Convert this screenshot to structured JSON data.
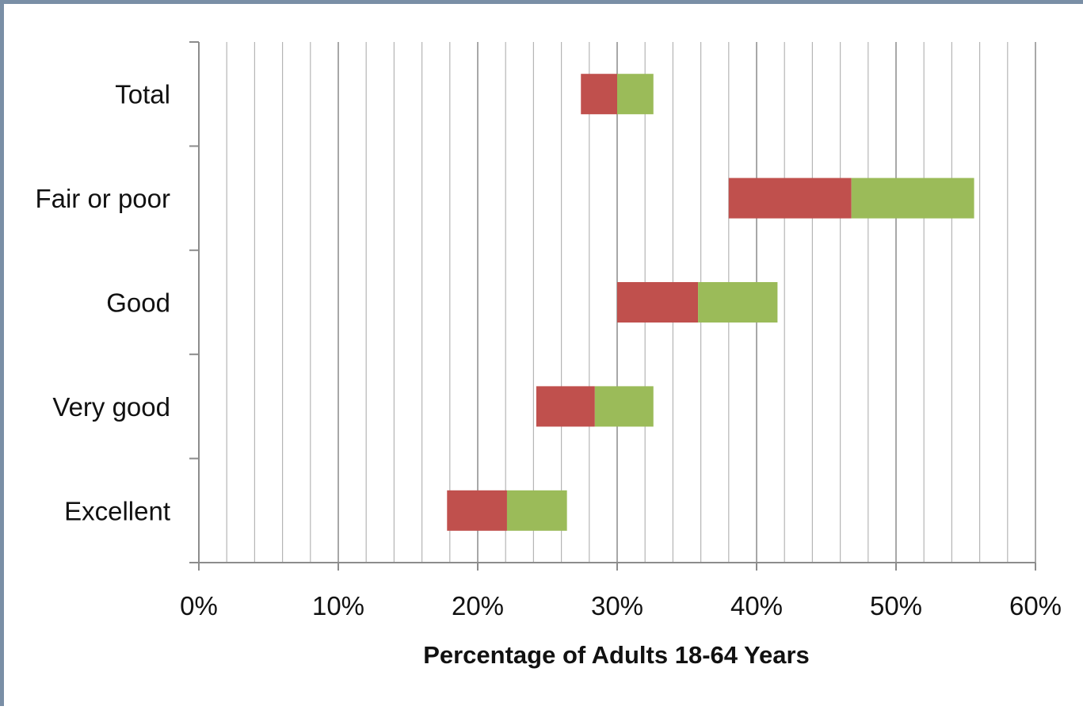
{
  "chart_data": {
    "type": "bar",
    "orientation": "horizontal",
    "stacked": true,
    "categories": [
      "Total",
      "Fair or poor",
      "Good",
      "Very good",
      "Excellent"
    ],
    "series": [
      {
        "values": [
          2.6,
          8.8,
          5.8,
          4.2,
          4.3
        ],
        "color": "#c0504d"
      },
      {
        "values": [
          2.6,
          8.8,
          5.7,
          4.2,
          4.3
        ],
        "color": "#9bbb59"
      }
    ],
    "base": [
      27.4,
      38.0,
      30.0,
      24.2,
      17.8
    ],
    "xlabel": "Percentage of Adults  18-64 Years",
    "xticks": [
      "0%",
      "10%",
      "20%",
      "30%",
      "40%",
      "50%",
      "60%"
    ],
    "xlim": [
      0,
      60
    ],
    "minor_step": 2,
    "grid": true
  }
}
